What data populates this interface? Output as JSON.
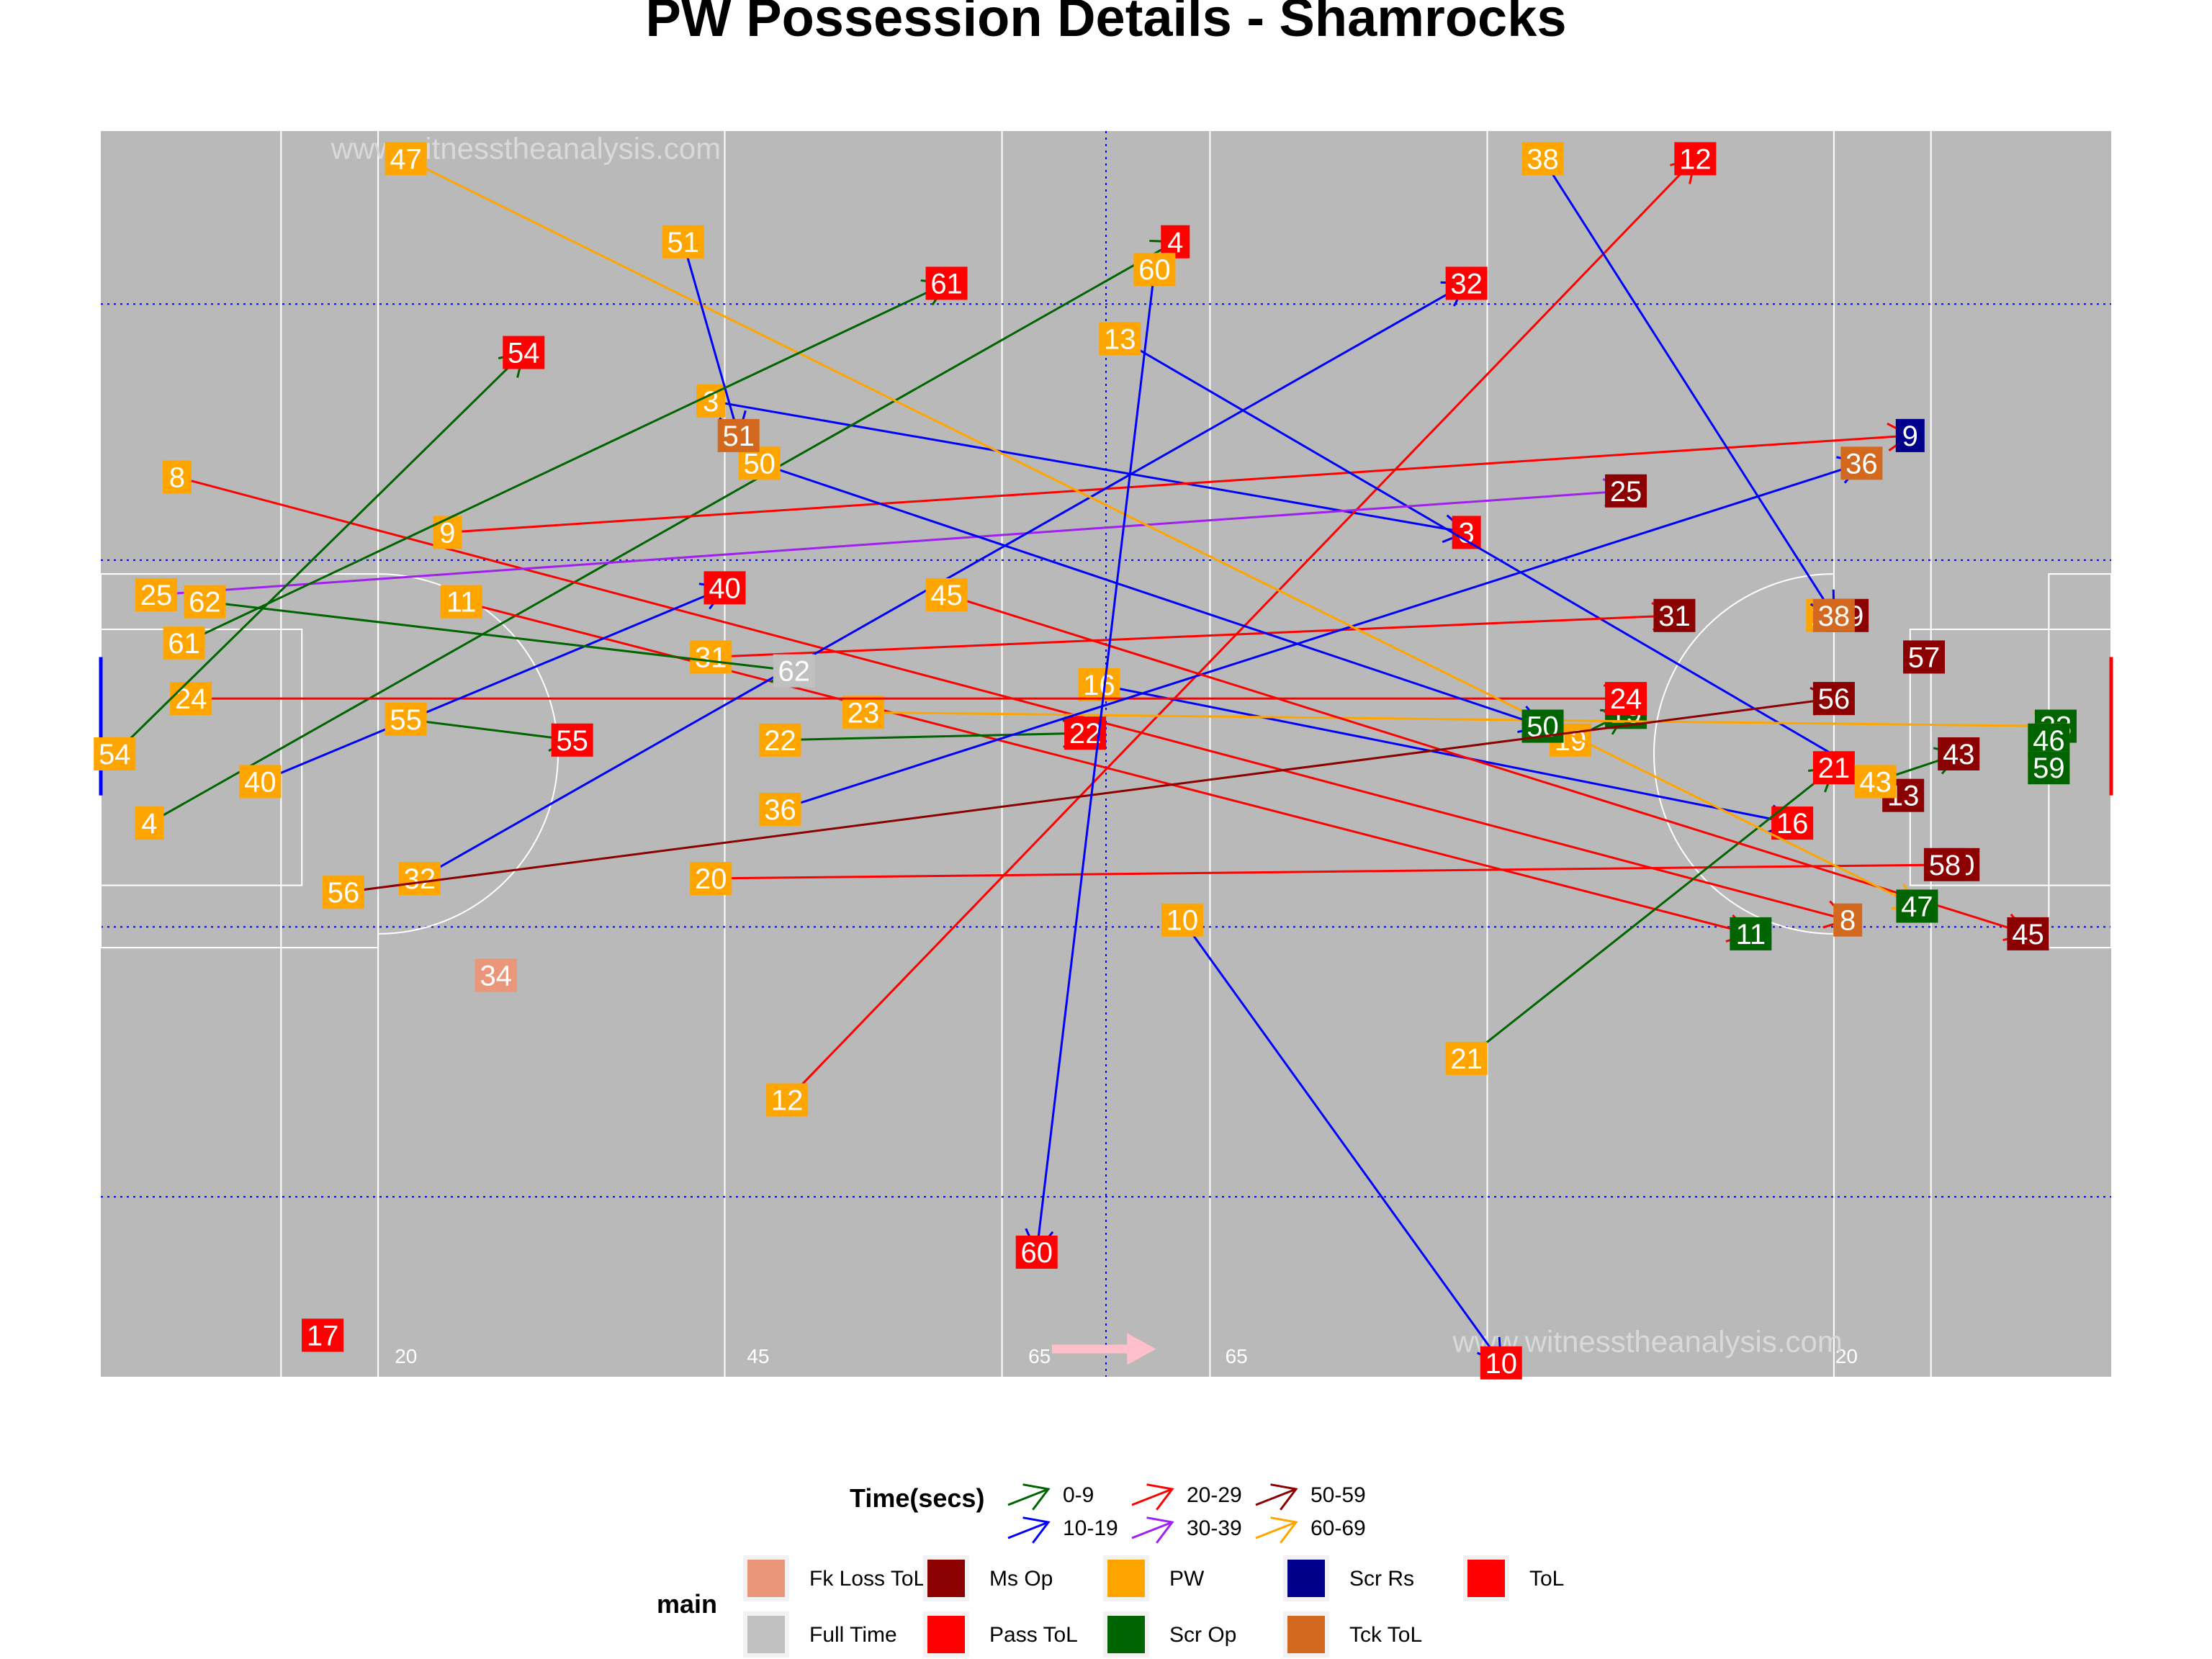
{
  "chart_data": {
    "type": "scatter",
    "title": "PW Possession Details - Shamrocks",
    "xlim": [
      0,
      145
    ],
    "ylim": [
      0,
      90
    ],
    "grid": true,
    "background": "#b9b9b9",
    "pitch_markings": {
      "solid_lines_x": [
        13,
        20,
        45,
        65,
        80,
        100,
        125,
        132
      ],
      "dotted_lines_x": [
        72.5
      ],
      "dotted_lines_y": [
        13,
        32.5,
        59,
        77.5
      ],
      "tick_labels": [
        {
          "x": 21.2,
          "text": "20"
        },
        {
          "x": 46.6,
          "text": "45"
        },
        {
          "x": 66.9,
          "text": "65"
        },
        {
          "x": 81.1,
          "text": "65"
        },
        {
          "x": 125.1,
          "text": "20"
        }
      ],
      "watermarks": [
        "www.witnesstheanalysis.com",
        "www.witnesstheanalysis.com"
      ],
      "direction_arrow": {
        "x_from": 68.6,
        "x_to": 76.1,
        "y": 2,
        "color": "#ffc0cb"
      }
    },
    "categories_main": [
      "Fk Loss ToL",
      "Ms Op",
      "PW",
      "Scr Rs",
      "ToL",
      "Full Time",
      "Pass ToL",
      "Scr Op",
      "Tck ToL"
    ],
    "main_colors": {
      "Fk Loss ToL": "#e9967a",
      "Ms Op": "#8b0000",
      "PW": "#ffa500",
      "Scr Rs": "#00008b",
      "ToL": "#ff0000",
      "Full Time": "#c0c0c0",
      "Pass ToL": "#ff0000",
      "Scr Op": "#006400",
      "Tck ToL": "#d2691e"
    },
    "time_categories": [
      "0-9",
      "10-19",
      "20-29",
      "30-39",
      "50-59",
      "60-69"
    ],
    "time_colors": {
      "0-9": "#006400",
      "10-19": "#0000ff",
      "20-29": "#ff0000",
      "30-39": "#a020f0",
      "50-59": "#8b0000",
      "60-69": "#ffa500"
    },
    "possessions": [
      {
        "id": "3",
        "start": [
          44,
          70.5
        ],
        "end": [
          98.5,
          61
        ],
        "time": "10-19",
        "outcome": "Pass ToL"
      },
      {
        "id": "4",
        "start": [
          3.5,
          40
        ],
        "end": [
          77.5,
          82
        ],
        "time": "0-9",
        "outcome": "Pass ToL"
      },
      {
        "id": "8",
        "start": [
          5.5,
          65
        ],
        "end": [
          126,
          33
        ],
        "time": "20-29",
        "outcome": "Tck ToL"
      },
      {
        "id": "9",
        "start": [
          25,
          61
        ],
        "end": [
          130.5,
          68
        ],
        "time": "20-29",
        "outcome": "Scr Rs"
      },
      {
        "id": "10",
        "start": [
          78,
          33
        ],
        "end": [
          101,
          1
        ],
        "time": "10-19",
        "outcome": "Pass ToL"
      },
      {
        "id": "11",
        "start": [
          26,
          56
        ],
        "end": [
          119,
          32
        ],
        "time": "20-29",
        "outcome": "Scr Op"
      },
      {
        "id": "12",
        "start": [
          49.5,
          20
        ],
        "end": [
          115,
          88
        ],
        "time": "20-29",
        "outcome": "Pass ToL"
      },
      {
        "id": "13",
        "start": [
          73.5,
          75
        ],
        "end": [
          130,
          42
        ],
        "time": "10-19",
        "outcome": "Ms Op"
      },
      {
        "id": "16",
        "start": [
          72,
          50
        ],
        "end": [
          122,
          40
        ],
        "time": "10-19",
        "outcome": "Pass ToL"
      },
      {
        "id": "17",
        "start": [
          16,
          3
        ],
        "end": [
          16,
          3
        ],
        "time": "0-9",
        "outcome": "ToL"
      },
      {
        "id": "19",
        "start": [
          106,
          46
        ],
        "end": [
          110,
          48
        ],
        "time": "0-9",
        "outcome": "Scr Op"
      },
      {
        "id": "20",
        "start": [
          44,
          36
        ],
        "end": [
          134,
          37
        ],
        "time": "20-29",
        "outcome": "Ms Op"
      },
      {
        "id": "21",
        "start": [
          98.5,
          23
        ],
        "end": [
          125,
          44
        ],
        "time": "0-9",
        "outcome": "Pass ToL"
      },
      {
        "id": "22",
        "start": [
          49,
          46
        ],
        "end": [
          71,
          46.5
        ],
        "time": "0-9",
        "outcome": "Pass ToL"
      },
      {
        "id": "23",
        "start": [
          55,
          48
        ],
        "end": [
          141,
          47
        ],
        "time": "60-69",
        "outcome": "Scr Op"
      },
      {
        "id": "24",
        "start": [
          6.5,
          49
        ],
        "end": [
          110,
          49
        ],
        "time": "20-29",
        "outcome": "Pass ToL"
      },
      {
        "id": "25",
        "start": [
          4,
          56.5
        ],
        "end": [
          110,
          64
        ],
        "time": "30-39",
        "outcome": "Ms Op"
      },
      {
        "id": "29",
        "start": [
          124.5,
          55
        ],
        "end": [
          126,
          55
        ],
        "time": "10-19",
        "outcome": "Ms Op"
      },
      {
        "id": "31",
        "start": [
          44,
          52
        ],
        "end": [
          113.5,
          55
        ],
        "time": "20-29",
        "outcome": "Ms Op"
      },
      {
        "id": "32",
        "start": [
          23,
          36
        ],
        "end": [
          98.5,
          79
        ],
        "time": "10-19",
        "outcome": "Pass ToL"
      },
      {
        "id": "34",
        "start": [
          28.5,
          29
        ],
        "end": [
          28.5,
          29
        ],
        "time": "0-9",
        "outcome": "Fk Loss ToL"
      },
      {
        "id": "36",
        "start": [
          49,
          41
        ],
        "end": [
          127,
          66
        ],
        "time": "10-19",
        "outcome": "Tck ToL"
      },
      {
        "id": "38",
        "start": [
          104,
          88
        ],
        "end": [
          125,
          55
        ],
        "time": "10-19",
        "outcome": "Tck ToL"
      },
      {
        "id": "40",
        "start": [
          11.5,
          43
        ],
        "end": [
          45,
          57
        ],
        "time": "10-19",
        "outcome": "Pass ToL"
      },
      {
        "id": "43",
        "start": [
          128,
          43
        ],
        "end": [
          134,
          45
        ],
        "time": "0-9",
        "outcome": "Ms Op"
      },
      {
        "id": "45",
        "start": [
          61,
          56.5
        ],
        "end": [
          139,
          32
        ],
        "time": "20-29",
        "outcome": "Ms Op"
      },
      {
        "id": "46",
        "start": [
          140.5,
          46
        ],
        "end": [
          140.5,
          46
        ],
        "time": "0-9",
        "outcome": "Scr Op"
      },
      {
        "id": "47",
        "start": [
          22,
          88
        ],
        "end": [
          131,
          34
        ],
        "time": "60-69",
        "outcome": "Scr Op"
      },
      {
        "id": "50",
        "start": [
          47.5,
          66
        ],
        "end": [
          104,
          47
        ],
        "time": "10-19",
        "outcome": "Scr Op"
      },
      {
        "id": "51",
        "start": [
          42,
          82
        ],
        "end": [
          46,
          68
        ],
        "time": "10-19",
        "outcome": "Tck ToL"
      },
      {
        "id": "54",
        "start": [
          1,
          45
        ],
        "end": [
          30.5,
          74
        ],
        "time": "0-9",
        "outcome": "Pass ToL"
      },
      {
        "id": "55",
        "start": [
          22,
          47.5
        ],
        "end": [
          34,
          46
        ],
        "time": "0-9",
        "outcome": "Pass ToL"
      },
      {
        "id": "56",
        "start": [
          17.5,
          35
        ],
        "end": [
          125,
          49
        ],
        "time": "50-59",
        "outcome": "Ms Op"
      },
      {
        "id": "57",
        "start": [
          131.5,
          52
        ],
        "end": [
          131.5,
          52
        ],
        "time": "50-59",
        "outcome": "Ms Op"
      },
      {
        "id": "58",
        "start": [
          133,
          37
        ],
        "end": [
          133,
          37
        ],
        "time": "50-59",
        "outcome": "Ms Op"
      },
      {
        "id": "59",
        "start": [
          140.5,
          44
        ],
        "end": [
          140.5,
          44
        ],
        "time": "0-9",
        "outcome": "Scr Op"
      },
      {
        "id": "60",
        "start": [
          76,
          80
        ],
        "end": [
          67.5,
          9
        ],
        "time": "10-19",
        "outcome": "Pass ToL"
      },
      {
        "id": "61",
        "start": [
          6,
          53
        ],
        "end": [
          61,
          79
        ],
        "time": "0-9",
        "outcome": "Pass ToL"
      },
      {
        "id": "62",
        "start": [
          7.5,
          56
        ],
        "end": [
          50,
          51
        ],
        "time": "0-9",
        "outcome": "Full Time"
      }
    ],
    "legend": {
      "time_title": "Time(secs)",
      "main_title": "main",
      "placement": "bottom"
    }
  }
}
